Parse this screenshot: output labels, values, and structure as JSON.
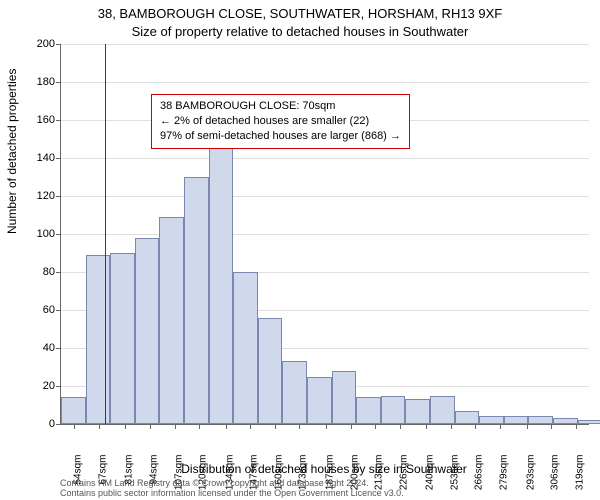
{
  "header": {
    "address": "38, BAMBOROUGH CLOSE, SOUTHWATER, HORSHAM, RH13 9XF",
    "subtitle": "Size of property relative to detached houses in Southwater"
  },
  "chart": {
    "type": "histogram",
    "background_color": "#ffffff",
    "grid_color": "#e0e0e0",
    "axis_color": "#666666",
    "bar_fill": "#d0d8ec",
    "bar_border": "#7a88b0",
    "marker_color": "#cc0000",
    "marker_x": 70,
    "bar_width_sqm": 13,
    "ylim": [
      0,
      200
    ],
    "ytick_step": 20,
    "y_axis_title": "Number of detached properties",
    "x_axis_title": "Distribution of detached houses by size in Southwater",
    "x_range": [
      47,
      326
    ],
    "x_ticks": [
      54,
      67,
      81,
      94,
      107,
      120,
      134,
      147,
      160,
      173,
      187,
      200,
      213,
      226,
      240,
      253,
      266,
      279,
      293,
      306,
      319
    ],
    "x_tick_suffix": "sqm",
    "bars": [
      {
        "x": 47,
        "v": 14
      },
      {
        "x": 60,
        "v": 89
      },
      {
        "x": 73,
        "v": 90
      },
      {
        "x": 86,
        "v": 98
      },
      {
        "x": 99,
        "v": 109
      },
      {
        "x": 112,
        "v": 130
      },
      {
        "x": 125,
        "v": 155
      },
      {
        "x": 138,
        "v": 80
      },
      {
        "x": 151,
        "v": 56
      },
      {
        "x": 164,
        "v": 33
      },
      {
        "x": 177,
        "v": 25
      },
      {
        "x": 190,
        "v": 28
      },
      {
        "x": 203,
        "v": 14
      },
      {
        "x": 216,
        "v": 15
      },
      {
        "x": 229,
        "v": 13
      },
      {
        "x": 242,
        "v": 15
      },
      {
        "x": 255,
        "v": 7
      },
      {
        "x": 268,
        "v": 4
      },
      {
        "x": 281,
        "v": 4
      },
      {
        "x": 294,
        "v": 4
      },
      {
        "x": 307,
        "v": 3
      },
      {
        "x": 320,
        "v": 2
      }
    ]
  },
  "info_box": {
    "border_color": "#cc0000",
    "line1": "38 BAMBOROUGH CLOSE: 70sqm",
    "line2": "← 2% of detached houses are smaller (22)",
    "line3": "97% of semi-detached houses are larger (868) →"
  },
  "footer": {
    "line1": "Contains HM Land Registry data © Crown copyright and database right 2024.",
    "line2": "Contains public sector information licensed under the Open Government Licence v3.0."
  }
}
